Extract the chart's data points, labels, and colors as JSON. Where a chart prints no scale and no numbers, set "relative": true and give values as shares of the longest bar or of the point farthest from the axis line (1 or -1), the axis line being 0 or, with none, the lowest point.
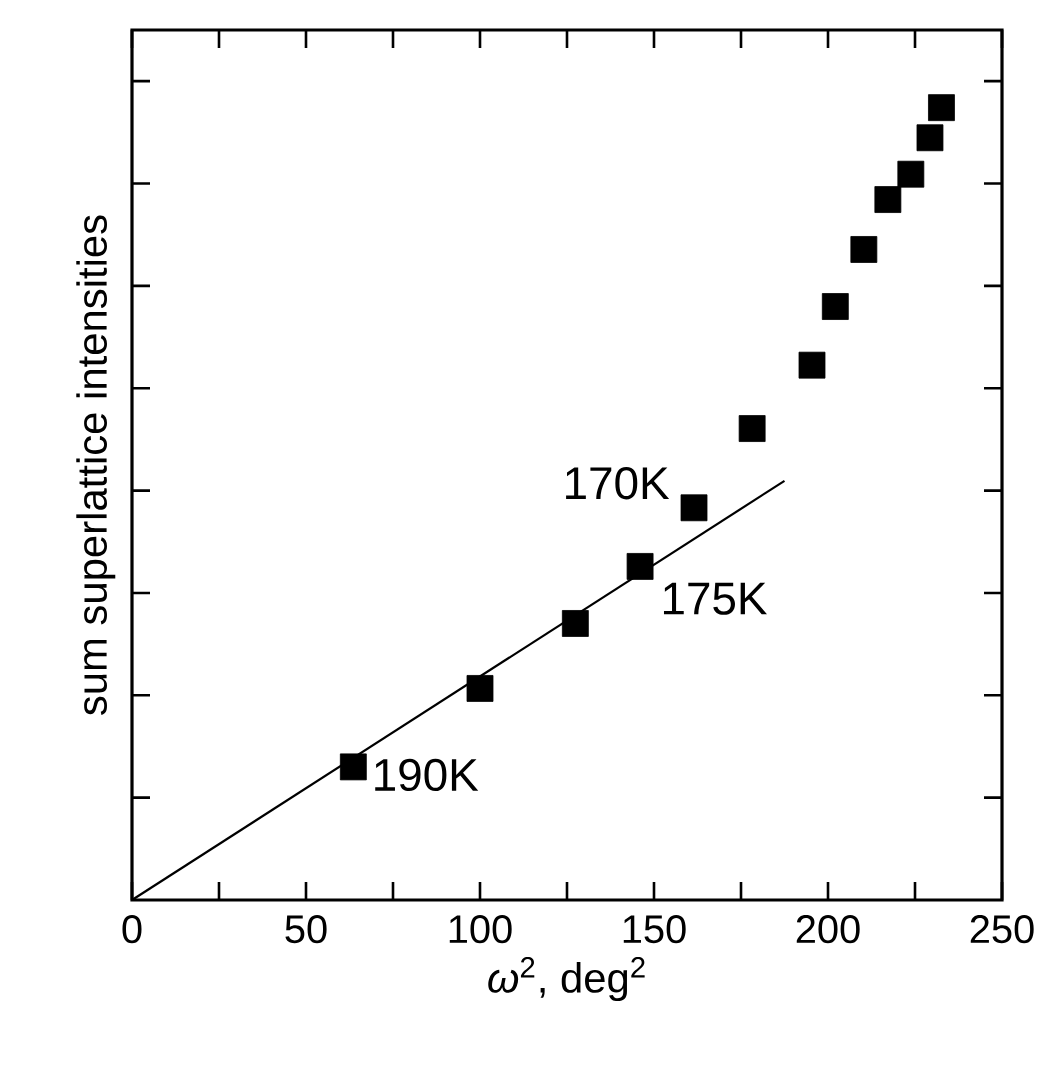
{
  "chart_data": {
    "type": "scatter",
    "relative": true,
    "xlabel": "*ω*$^{2}$, deg$^{2}$",
    "ylabel": "sum superlattice intensities",
    "xlim": [
      0,
      250
    ],
    "xticks": [
      0,
      50,
      100,
      150,
      200,
      250
    ],
    "series": [
      {
        "color": "#000000",
        "marker": "square",
        "x": [
          63.6,
          100,
          127.4,
          146,
          161.5,
          178.2,
          195.4,
          202.1,
          210.3,
          217.2,
          223.8,
          229.3,
          232.6
        ],
        "values": [
          0.168,
          0.267,
          0.349,
          0.421,
          0.495,
          0.595,
          0.675,
          0.749,
          0.821,
          0.884,
          0.916,
          0.962,
          1.0
        ]
      },
      {
        "type": "line",
        "color": "#000000",
        "marker": "none",
        "line_style": "solid",
        "x": [
          0,
          187.5
        ],
        "values": [
          0,
          0.529
        ]
      }
    ],
    "annotations": [
      {
        "text": "190K",
        "x": 63.6,
        "y": 0.168
      },
      {
        "text": "175K",
        "x": 146,
        "y": 0.421
      },
      {
        "text": "170K",
        "x": 161.5,
        "y": 0.495
      }
    ]
  }
}
